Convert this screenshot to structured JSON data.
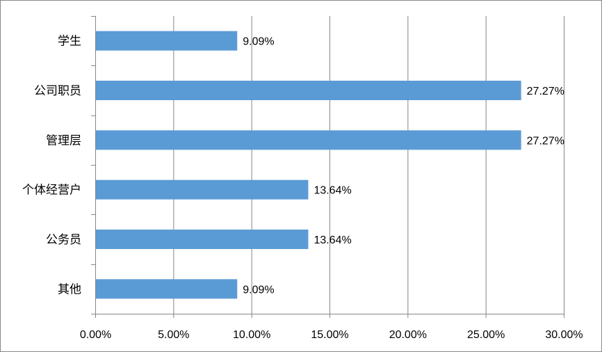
{
  "chart_data": {
    "type": "bar",
    "orientation": "horizontal",
    "categories": [
      "学生",
      "公司职员",
      "管理层",
      "个体经营户",
      "公务员",
      "其他"
    ],
    "values": [
      9.09,
      27.27,
      27.27,
      13.64,
      13.64,
      9.09
    ],
    "data_labels": [
      "9.09%",
      "27.27%",
      "27.27%",
      "13.64%",
      "13.64%",
      "9.09%"
    ],
    "xlim": [
      0,
      30
    ],
    "x_ticks": [
      0,
      5,
      10,
      15,
      20,
      25,
      30
    ],
    "x_tick_labels": [
      "0.00%",
      "5.00%",
      "10.00%",
      "15.00%",
      "20.00%",
      "25.00%",
      "30.00%"
    ],
    "title": "",
    "xlabel": "",
    "ylabel": "",
    "grid": "vertical",
    "legend": "none",
    "bar_color": "#5B9BD5",
    "grid_color": "#868686",
    "axis_color": "#868686"
  }
}
